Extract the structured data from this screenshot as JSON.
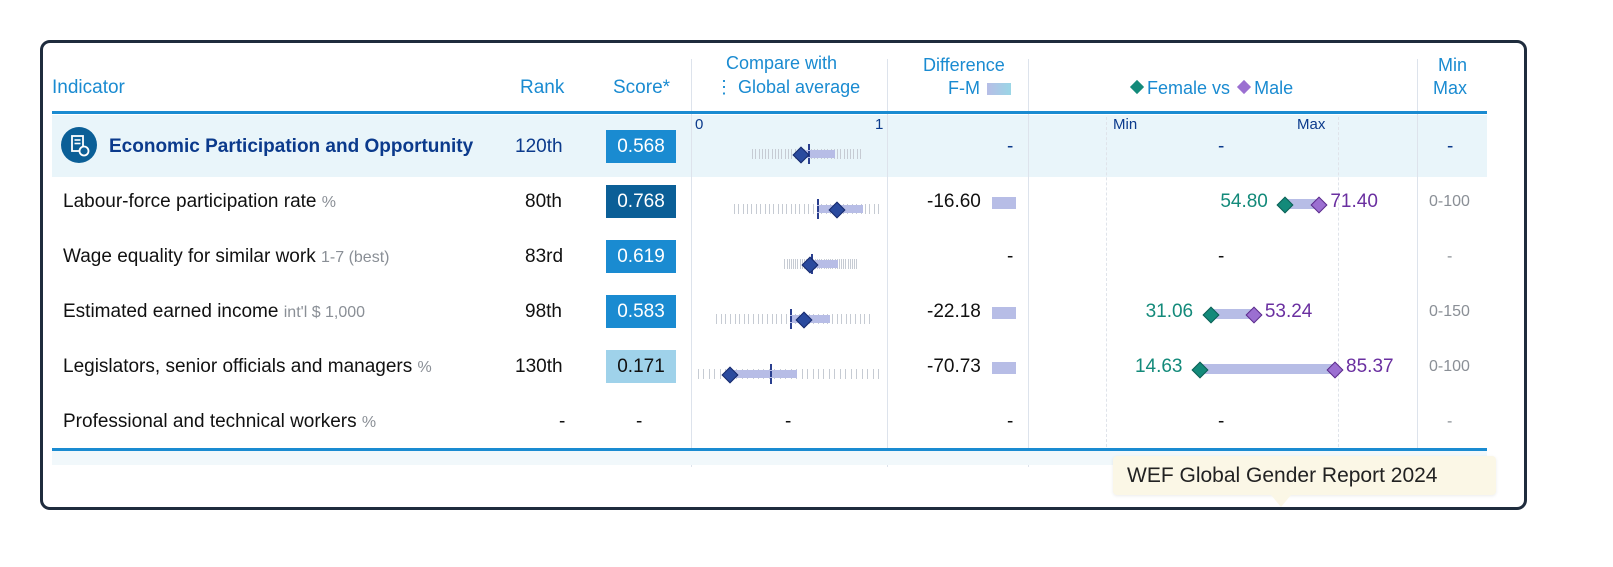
{
  "headers": {
    "indicator": "Indicator",
    "rank": "Rank",
    "score": "Score*",
    "compare_line1": "Compare with",
    "compare_line2": "Global average",
    "diff_line1": "Difference",
    "diff_line2": "F-M",
    "fvm_female": "Female vs",
    "fvm_male": "Male",
    "minmax_line1": "Min",
    "minmax_line2": "Max",
    "axis_0": "0",
    "axis_1": "1",
    "axis_min": "Min",
    "axis_max": "Max"
  },
  "category": {
    "label": "Economic Participation and Opportunity",
    "rank": "120th",
    "score": "0.568",
    "score_value": 0.568,
    "avg_value": 0.61,
    "difference": "-",
    "fvm": "-",
    "minmax": "-"
  },
  "rows": [
    {
      "label": "Labour-force participation rate",
      "unit": "%",
      "rank": "80th",
      "score": "0.768",
      "score_value": 0.768,
      "avg_value": 0.66,
      "difference": "-16.60",
      "female": "54.80",
      "male": "71.40",
      "female_value": 54.8,
      "male_value": 71.4,
      "range_max": 100,
      "minmax": "0-100"
    },
    {
      "label": "Wage equality for similar work",
      "unit": "1-7 (best)",
      "rank": "83rd",
      "score": "0.619",
      "score_value": 0.619,
      "avg_value": 0.63,
      "difference": "-",
      "fvm": "-",
      "minmax": "-"
    },
    {
      "label": "Estimated earned income",
      "unit": "int'l $ 1,000",
      "rank": "98th",
      "score": "0.583",
      "score_value": 0.583,
      "avg_value": 0.51,
      "difference": "-22.18",
      "female": "31.06",
      "male": "53.24",
      "female_value": 31.06,
      "male_value": 53.24,
      "range_max": 150,
      "minmax": "0-150"
    },
    {
      "label": "Legislators, senior officials and managers",
      "unit": "%",
      "rank": "130th",
      "score": "0.171",
      "score_value": 0.171,
      "avg_value": 0.4,
      "difference": "-70.73",
      "female": "14.63",
      "male": "85.37",
      "female_value": 14.63,
      "male_value": 85.37,
      "range_max": 100,
      "minmax": "0-100"
    },
    {
      "label": "Professional and technical workers",
      "unit": "%",
      "rank": "-",
      "score": "-",
      "compare": "-",
      "difference": "-",
      "fvm": "-",
      "minmax": "-"
    }
  ],
  "colors": {
    "accent": "#1a8bd1",
    "header_text": "#1a8bd1",
    "category_text": "#0b3a8c",
    "female": "#138a7a",
    "male": "#6a2fa0",
    "bar": "#b7bde6",
    "score_dark": "#0b5f97",
    "score_mid": "#1a8bd1",
    "score_light": "#9fd2ea"
  },
  "tooltip": "WEF Global Gender Report 2024",
  "icons": {
    "category": "document-coins-icon"
  }
}
